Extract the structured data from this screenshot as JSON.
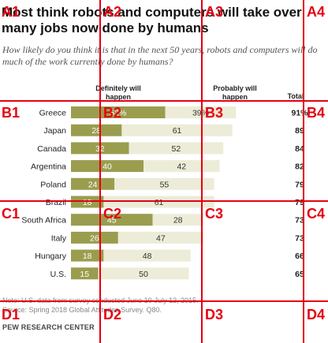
{
  "title": "Most think robots and computers will take over many jobs now done by humans",
  "subtitle": "How likely do you think it is that in the next 50 years, robots and computers will do much of the work currently done by humans?",
  "column_headers": {
    "definitely": "Definitely will happen",
    "probably": "Probably will happen",
    "total": "Total"
  },
  "notes": {
    "note": "Note: U.S. data from survey conducted June 10-July 12, 2015.",
    "source": "Source: Spring 2018 Global Attitudes Survey. Q80.",
    "org": "PEW RESEARCH CENTER"
  },
  "grid_labels": [
    "A1",
    "A2",
    "A3",
    "A4",
    "B1",
    "B2",
    "B3",
    "B4",
    "C1",
    "C2",
    "C3",
    "C4",
    "D1",
    "D2",
    "D3",
    "D4"
  ],
  "colors": {
    "definitely": "#9a9d4e",
    "probably": "#ececd8",
    "grid": "#e60012"
  },
  "chart_data": {
    "type": "bar",
    "stacked": true,
    "orientation": "horizontal",
    "categories": [
      "Greece",
      "Japan",
      "Canada",
      "Argentina",
      "Poland",
      "Brazil",
      "South Africa",
      "Italy",
      "Hungary",
      "U.S."
    ],
    "series": [
      {
        "name": "Definitely will happen",
        "values": [
          52,
          28,
          32,
          40,
          24,
          18,
          45,
          26,
          18,
          15
        ],
        "labels": [
          "52%",
          "28",
          "32",
          "40",
          "24",
          "18",
          "45",
          "26",
          "18",
          "15"
        ]
      },
      {
        "name": "Probably will happen",
        "values": [
          39,
          61,
          52,
          42,
          55,
          61,
          28,
          47,
          48,
          50
        ],
        "labels": [
          "39%",
          "61",
          "52",
          "42",
          "55",
          "61",
          "28",
          "47",
          "48",
          "50"
        ]
      }
    ],
    "totals": [
      91,
      89,
      84,
      82,
      79,
      79,
      73,
      73,
      66,
      65
    ],
    "total_labels": [
      "91%",
      "89",
      "84",
      "82",
      "79",
      "79",
      "73",
      "73",
      "66",
      "65"
    ]
  }
}
